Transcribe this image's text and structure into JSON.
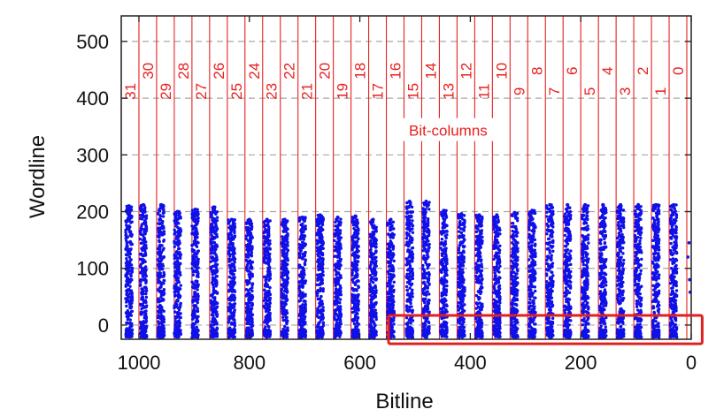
{
  "chart_data": {
    "type": "scatter",
    "title": "",
    "xlabel": "Bitline",
    "ylabel": "Wordline",
    "xlim": [
      1032,
      0
    ],
    "ylim": [
      -25,
      545
    ],
    "x_reversed": true,
    "xticks": [
      1000,
      800,
      600,
      400,
      200,
      0
    ],
    "yticks": [
      0,
      100,
      200,
      300,
      400,
      500
    ],
    "grid": true,
    "series": [
      {
        "color": "#1010e8",
        "columns": [
          {
            "x": 1018,
            "top": 210
          },
          {
            "x": 992,
            "top": 212
          },
          {
            "x": 960,
            "top": 212
          },
          {
            "x": 930,
            "top": 200
          },
          {
            "x": 898,
            "top": 204
          },
          {
            "x": 864,
            "top": 208
          },
          {
            "x": 832,
            "top": 186
          },
          {
            "x": 800,
            "top": 186
          },
          {
            "x": 768,
            "top": 186
          },
          {
            "x": 736,
            "top": 186
          },
          {
            "x": 704,
            "top": 190
          },
          {
            "x": 672,
            "top": 194
          },
          {
            "x": 640,
            "top": 190
          },
          {
            "x": 608,
            "top": 192
          },
          {
            "x": 576,
            "top": 186
          },
          {
            "x": 544,
            "top": 186
          },
          {
            "x": 510,
            "top": 218
          },
          {
            "x": 480,
            "top": 218
          },
          {
            "x": 448,
            "top": 202
          },
          {
            "x": 416,
            "top": 196
          },
          {
            "x": 384,
            "top": 194
          },
          {
            "x": 352,
            "top": 194
          },
          {
            "x": 320,
            "top": 198
          },
          {
            "x": 288,
            "top": 202
          },
          {
            "x": 256,
            "top": 212
          },
          {
            "x": 224,
            "top": 212
          },
          {
            "x": 192,
            "top": 212
          },
          {
            "x": 160,
            "top": 212
          },
          {
            "x": 128,
            "top": 212
          },
          {
            "x": 96,
            "top": 212
          },
          {
            "x": 64,
            "top": 212
          },
          {
            "x": 32,
            "top": 212
          }
        ],
        "y_min": -22
      }
    ],
    "bit_columns": {
      "label": "Bit-columns",
      "color": "#e8201f",
      "boundaries": [
        1032,
        1000,
        968,
        936,
        904,
        872,
        840,
        808,
        776,
        744,
        712,
        680,
        648,
        616,
        584,
        552,
        520,
        488,
        456,
        424,
        392,
        360,
        328,
        296,
        264,
        232,
        200,
        168,
        136,
        104,
        72,
        40,
        8
      ],
      "labels": [
        {
          "text": "31",
          "x": 1016,
          "y": 412
        },
        {
          "text": "30",
          "x": 984,
          "y": 448
        },
        {
          "text": "29",
          "x": 952,
          "y": 412
        },
        {
          "text": "28",
          "x": 920,
          "y": 448
        },
        {
          "text": "27",
          "x": 888,
          "y": 412
        },
        {
          "text": "26",
          "x": 856,
          "y": 448
        },
        {
          "text": "25",
          "x": 824,
          "y": 412
        },
        {
          "text": "24",
          "x": 792,
          "y": 448
        },
        {
          "text": "23",
          "x": 760,
          "y": 412
        },
        {
          "text": "22",
          "x": 728,
          "y": 448
        },
        {
          "text": "21",
          "x": 696,
          "y": 412
        },
        {
          "text": "20",
          "x": 664,
          "y": 448
        },
        {
          "text": "19",
          "x": 632,
          "y": 412
        },
        {
          "text": "18",
          "x": 600,
          "y": 448
        },
        {
          "text": "17",
          "x": 568,
          "y": 412
        },
        {
          "text": "16",
          "x": 536,
          "y": 448
        },
        {
          "text": "15",
          "x": 504,
          "y": 412
        },
        {
          "text": "14",
          "x": 472,
          "y": 448
        },
        {
          "text": "13",
          "x": 440,
          "y": 412
        },
        {
          "text": "12",
          "x": 408,
          "y": 448
        },
        {
          "text": "11",
          "x": 376,
          "y": 412
        },
        {
          "text": "10",
          "x": 344,
          "y": 448
        },
        {
          "text": "9",
          "x": 312,
          "y": 412
        },
        {
          "text": "8",
          "x": 280,
          "y": 448
        },
        {
          "text": "7",
          "x": 248,
          "y": 412
        },
        {
          "text": "6",
          "x": 216,
          "y": 448
        },
        {
          "text": "5",
          "x": 184,
          "y": 412
        },
        {
          "text": "4",
          "x": 152,
          "y": 448
        },
        {
          "text": "3",
          "x": 120,
          "y": 412
        },
        {
          "text": "2",
          "x": 88,
          "y": 448
        },
        {
          "text": "1",
          "x": 56,
          "y": 412
        },
        {
          "text": "0",
          "x": 24,
          "y": 448
        }
      ],
      "label_position": {
        "x": 440,
        "y": 343
      }
    },
    "highlight": {
      "color": "#e02020",
      "x_range": [
        548,
        -20
      ],
      "y_range": [
        -33,
        17
      ]
    }
  }
}
